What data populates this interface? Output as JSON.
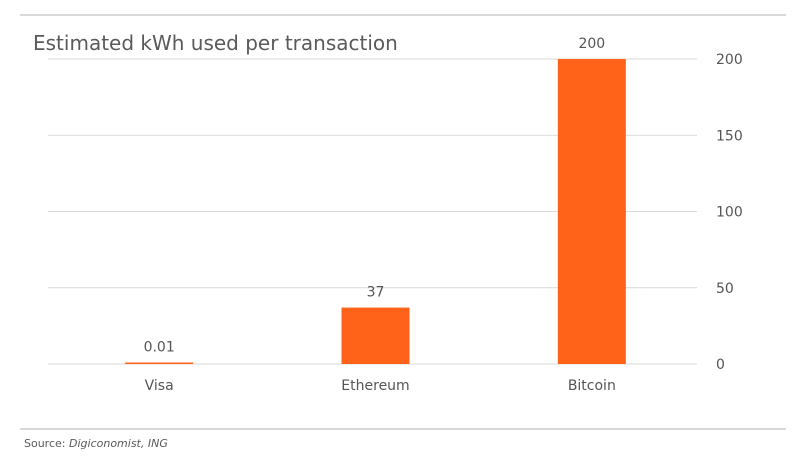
{
  "chart_data": {
    "type": "bar",
    "title": "Estimated kWh used per transaction",
    "categories": [
      "Visa",
      "Ethereum",
      "Bitcoin"
    ],
    "values": [
      0.01,
      37,
      200
    ],
    "data_labels": [
      "0.01",
      "37",
      "200"
    ],
    "y_ticks": [
      0,
      50,
      100,
      150,
      200
    ],
    "ylim": [
      0,
      200
    ],
    "y_axis_position": "right",
    "grid": true,
    "legend": "none",
    "bar_color": "#ff6319",
    "grid_color": "#d9d9d9"
  },
  "source": {
    "label": "Source:",
    "value": "Digiconomist, ING"
  }
}
